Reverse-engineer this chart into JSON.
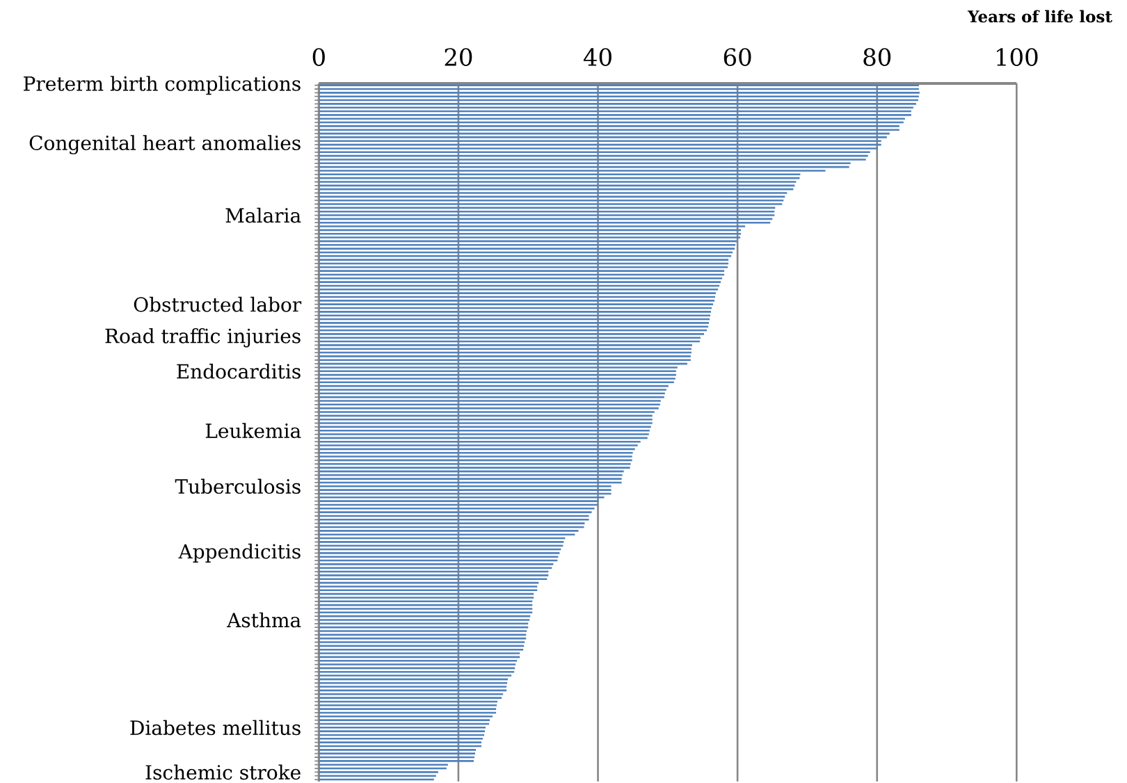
{
  "chart_data": {
    "type": "bar",
    "orientation": "horizontal",
    "xlabel": "Years of life lost",
    "color": "#4f81bd",
    "grid": "x",
    "xlim": [
      0,
      100
    ],
    "xticks": [
      0,
      20,
      40,
      60,
      80,
      100
    ],
    "categories": [
      "Preterm birth complications",
      null,
      null,
      null,
      null,
      null,
      null,
      null,
      null,
      null,
      null,
      null,
      null,
      null,
      null,
      null,
      "Congenital heart anomalies",
      null,
      null,
      null,
      null,
      null,
      null,
      null,
      null,
      null,
      null,
      null,
      null,
      null,
      null,
      null,
      null,
      null,
      null,
      "Malaria",
      null,
      null,
      null,
      null,
      null,
      null,
      null,
      null,
      null,
      null,
      null,
      null,
      null,
      null,
      null,
      null,
      null,
      null,
      null,
      null,
      null,
      null,
      null,
      "Obstructed labor",
      null,
      null,
      null,
      null,
      null,
      null,
      null,
      null,
      "Road traffic injuries",
      null,
      null,
      null,
      null,
      null,
      null,
      null,
      null,
      "Endocarditis",
      null,
      null,
      null,
      null,
      null,
      null,
      null,
      null,
      null,
      null,
      null,
      null,
      null,
      null,
      null,
      "Leukemia",
      null,
      null,
      null,
      null,
      null,
      null,
      null,
      null,
      null,
      null,
      null,
      null,
      null,
      null,
      "Tuberculosis",
      null,
      null,
      null,
      null,
      null,
      null,
      null,
      null,
      null,
      null,
      null,
      null,
      null,
      null,
      null,
      null,
      null,
      "Appendicitis",
      null,
      null,
      null,
      null,
      null,
      null,
      null,
      null,
      null,
      null,
      null,
      null,
      null,
      null,
      null,
      null,
      null,
      "Asthma",
      null,
      null,
      null,
      null,
      null,
      null,
      null,
      null,
      null,
      null,
      null,
      null,
      null,
      null,
      null,
      null,
      null,
      null,
      null,
      null,
      null,
      null,
      null,
      null,
      null,
      null,
      null,
      null,
      "Diabetes mellitus",
      null,
      null,
      null,
      null,
      null,
      null,
      null,
      null,
      null,
      null,
      null,
      "Ischemic stroke",
      null,
      null
    ],
    "values": [
      86.0,
      86.0,
      86.1,
      86.0,
      85.9,
      85.6,
      85.2,
      84.9,
      84.9,
      84.0,
      83.8,
      83.2,
      83.2,
      81.8,
      81.4,
      80.6,
      80.6,
      80.1,
      79.0,
      78.7,
      78.4,
      76.2,
      76.0,
      72.6,
      69.0,
      68.9,
      68.4,
      68.2,
      68.0,
      67.1,
      66.8,
      66.6,
      66.4,
      65.4,
      65.3,
      65.3,
      65.0,
      64.7,
      61.1,
      60.5,
      60.5,
      60.4,
      59.9,
      59.7,
      59.6,
      59.3,
      59.1,
      58.7,
      58.7,
      58.6,
      58.1,
      58.1,
      57.8,
      57.6,
      57.4,
      57.2,
      56.9,
      56.8,
      56.7,
      56.5,
      56.3,
      56.2,
      56.1,
      56.0,
      55.9,
      55.8,
      55.6,
      55.2,
      54.7,
      54.6,
      53.5,
      53.4,
      53.4,
      53.3,
      53.3,
      52.8,
      51.4,
      51.2,
      51.2,
      51.1,
      50.9,
      50.1,
      49.8,
      49.6,
      49.5,
      49.0,
      48.9,
      48.7,
      48.1,
      47.8,
      47.8,
      47.8,
      47.6,
      47.4,
      47.3,
      47.1,
      46.1,
      45.7,
      45.3,
      45.0,
      44.9,
      44.9,
      44.7,
      44.6,
      43.7,
      43.5,
      43.4,
      43.4,
      41.9,
      41.9,
      41.9,
      40.9,
      40.1,
      40.0,
      39.5,
      39.1,
      38.7,
      38.7,
      38.1,
      38.0,
      37.2,
      36.7,
      35.3,
      35.1,
      35.0,
      34.7,
      34.5,
      34.3,
      34.2,
      33.6,
      33.4,
      32.9,
      32.9,
      32.7,
      31.5,
      31.3,
      31.3,
      30.8,
      30.8,
      30.6,
      30.6,
      30.6,
      30.6,
      30.3,
      30.2,
      30.0,
      30.0,
      29.8,
      29.7,
      29.7,
      29.5,
      29.4,
      29.3,
      28.8,
      28.8,
      28.4,
      28.2,
      28.1,
      28.0,
      27.6,
      27.1,
      27.0,
      26.9,
      26.9,
      26.4,
      26.2,
      25.6,
      25.5,
      25.4,
      25.4,
      24.9,
      24.5,
      24.4,
      23.9,
      23.8,
      23.7,
      23.5,
      23.3,
      23.3,
      22.5,
      22.4,
      22.3,
      22.2,
      18.5,
      18.3,
      17.1,
      16.8,
      16.5
    ]
  }
}
